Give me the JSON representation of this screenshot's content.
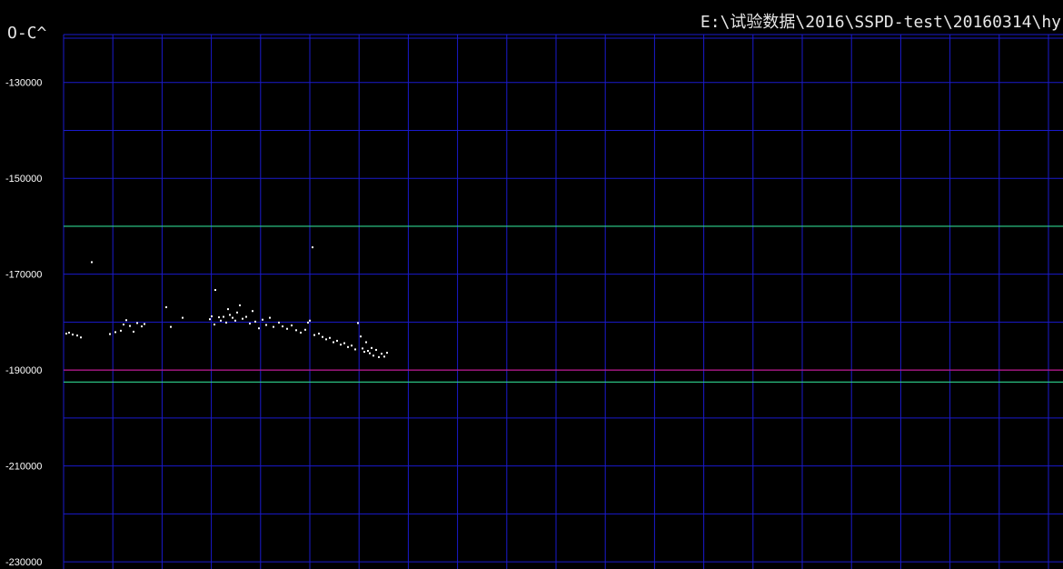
{
  "window": {
    "title": "E:\\试验数据\\2016\\SSPD-test\\20160314\\hy"
  },
  "chart_data": {
    "type": "scatter",
    "title": "",
    "xlabel": "",
    "ylabel": "O-C^",
    "ylim": [
      -231500,
      -120000
    ],
    "yticks": [
      -130000,
      -150000,
      -170000,
      -190000,
      -210000,
      -230000
    ],
    "grid": true,
    "colors": {
      "background": "#000000",
      "grid": "#1a1acd",
      "points": "#ffffff",
      "limit_line": "#2fd58f",
      "reference_line": "#c01a8c",
      "text": "#ffffff"
    },
    "reference_lines": [
      {
        "kind": "limit",
        "y": -160000,
        "color": "#2fd58f"
      },
      {
        "kind": "reference",
        "y": -190000,
        "color": "#c01a8c"
      },
      {
        "kind": "limit",
        "y": -192500,
        "color": "#2fd58f"
      }
    ],
    "x_unit": "index",
    "xlim": [
      0,
      1100
    ],
    "points": [
      [
        2,
        -182200
      ],
      [
        5,
        -182000
      ],
      [
        9,
        -182400
      ],
      [
        14,
        -182600
      ],
      [
        18,
        -183000
      ],
      [
        30,
        -167300
      ],
      [
        50,
        -182300
      ],
      [
        56,
        -181900
      ],
      [
        62,
        -181600
      ],
      [
        65,
        -180300
      ],
      [
        68,
        -179400
      ],
      [
        72,
        -180600
      ],
      [
        76,
        -181800
      ],
      [
        80,
        -180000
      ],
      [
        85,
        -180700
      ],
      [
        88,
        -180200
      ],
      [
        112,
        -176700
      ],
      [
        117,
        -180800
      ],
      [
        130,
        -178900
      ],
      [
        160,
        -179200
      ],
      [
        162,
        -178600
      ],
      [
        165,
        -180300
      ],
      [
        166,
        -173100
      ],
      [
        170,
        -178800
      ],
      [
        172,
        -179500
      ],
      [
        175,
        -178700
      ],
      [
        178,
        -179900
      ],
      [
        180,
        -177100
      ],
      [
        182,
        -178300
      ],
      [
        185,
        -178900
      ],
      [
        188,
        -179500
      ],
      [
        190,
        -177800
      ],
      [
        193,
        -176300
      ],
      [
        196,
        -179100
      ],
      [
        200,
        -178700
      ],
      [
        204,
        -180100
      ],
      [
        207,
        -177500
      ],
      [
        210,
        -179700
      ],
      [
        214,
        -181100
      ],
      [
        218,
        -179300
      ],
      [
        222,
        -180400
      ],
      [
        226,
        -178900
      ],
      [
        230,
        -180800
      ],
      [
        236,
        -179900
      ],
      [
        240,
        -180700
      ],
      [
        245,
        -181200
      ],
      [
        250,
        -180500
      ],
      [
        255,
        -181500
      ],
      [
        260,
        -182000
      ],
      [
        265,
        -181400
      ],
      [
        268,
        -179900
      ],
      [
        270,
        -179500
      ],
      [
        275,
        -182500
      ],
      [
        280,
        -182200
      ],
      [
        284,
        -182900
      ],
      [
        288,
        -183400
      ],
      [
        292,
        -183100
      ],
      [
        296,
        -184000
      ],
      [
        300,
        -183700
      ],
      [
        304,
        -184500
      ],
      [
        308,
        -184200
      ],
      [
        312,
        -185000
      ],
      [
        316,
        -184700
      ],
      [
        320,
        -185500
      ],
      [
        323,
        -180000
      ],
      [
        326,
        -182800
      ],
      [
        328,
        -185300
      ],
      [
        330,
        -186000
      ],
      [
        332,
        -184000
      ],
      [
        334,
        -185800
      ],
      [
        336,
        -186300
      ],
      [
        338,
        -185200
      ],
      [
        340,
        -186800
      ],
      [
        343,
        -185600
      ],
      [
        346,
        -187100
      ],
      [
        349,
        -186400
      ],
      [
        352,
        -187000
      ],
      [
        355,
        -186200
      ],
      [
        273,
        -164200
      ]
    ]
  }
}
